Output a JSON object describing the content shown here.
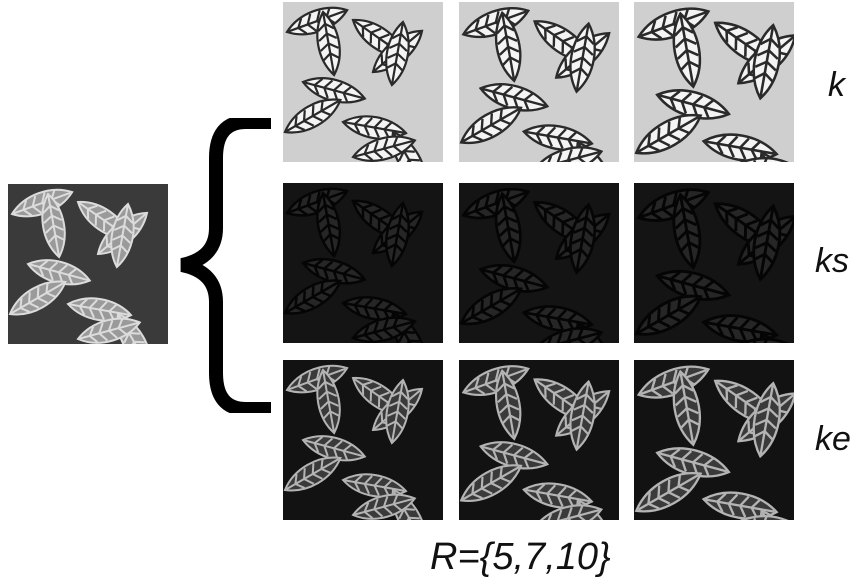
{
  "source_image": {
    "icon": "leaf-texture",
    "tone": "gray"
  },
  "rows": [
    {
      "label": "k",
      "icon": "leaf-texture",
      "tone": "bright"
    },
    {
      "label": "ks",
      "icon": "leaf-texture",
      "tone": "dark"
    },
    {
      "label": "ke",
      "icon": "leaf-texture",
      "tone": "edge"
    }
  ],
  "caption": "R={5,7,10}",
  "colors": {
    "bright": "#f2f2f2",
    "dark": "#1e1e1e",
    "edge": "#a8a8a8",
    "background": "#ffffff"
  }
}
